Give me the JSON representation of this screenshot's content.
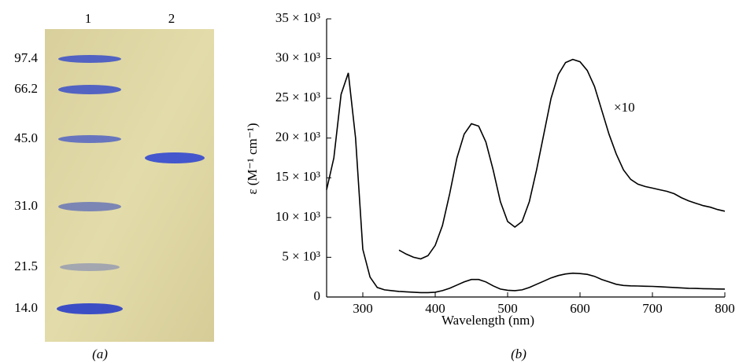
{
  "gel": {
    "lanes": [
      "1",
      "2"
    ],
    "markers": [
      "97.4",
      "66.2",
      "45.0",
      "31.0",
      "21.5",
      "14.0"
    ],
    "caption": "(a)"
  },
  "chart_data": {
    "type": "line",
    "caption": "(b)",
    "x_label": "Wavelength (nm)",
    "y_label": "ε (M⁻¹ cm⁻¹)",
    "annotation": "×10",
    "x": [
      250,
      260,
      270,
      280,
      290,
      300,
      310,
      320,
      330,
      340,
      350,
      360,
      370,
      380,
      390,
      400,
      410,
      420,
      430,
      440,
      450,
      460,
      470,
      480,
      490,
      500,
      510,
      520,
      530,
      540,
      550,
      560,
      570,
      580,
      590,
      600,
      610,
      620,
      630,
      640,
      650,
      660,
      670,
      680,
      690,
      700,
      710,
      720,
      730,
      740,
      750,
      760,
      770,
      780,
      790,
      800
    ],
    "series": [
      {
        "color": "#000000",
        "values": [
          13500,
          17500,
          25500,
          28200,
          20000,
          6000,
          2500,
          1200,
          900,
          800,
          700,
          650,
          600,
          550,
          550,
          600,
          800,
          1100,
          1500,
          1900,
          2200,
          2200,
          1900,
          1400,
          1000,
          850,
          800,
          900,
          1200,
          1600,
          2000,
          2400,
          2700,
          2900,
          3000,
          2950,
          2850,
          2600,
          2200,
          1900,
          1600,
          1450,
          1400,
          1380,
          1350,
          1330,
          1300,
          1250,
          1200,
          1150,
          1100,
          1080,
          1050,
          1030,
          1010,
          1000
        ]
      },
      {
        "color": "#000000",
        "values": [
          null,
          null,
          null,
          null,
          null,
          null,
          null,
          null,
          null,
          null,
          5900,
          5400,
          5000,
          4800,
          5200,
          6500,
          9000,
          13000,
          17500,
          20500,
          21800,
          21500,
          19500,
          16000,
          12000,
          9500,
          8800,
          9500,
          12000,
          16000,
          20500,
          25000,
          28000,
          29500,
          29900,
          29600,
          28500,
          26500,
          23500,
          20500,
          18000,
          16000,
          14800,
          14200,
          13900,
          13700,
          13500,
          13300,
          13000,
          12500,
          12100,
          11800,
          11500,
          11300,
          11000,
          10800
        ]
      }
    ],
    "xlim": [
      250,
      800
    ],
    "xticks": [
      300,
      400,
      500,
      600,
      700,
      800
    ],
    "ylim": [
      0,
      35000
    ],
    "yticks": [
      0,
      {
        "value": 5000,
        "label": "5 × 10³"
      },
      {
        "value": 10000,
        "label": "10 × 10³"
      },
      {
        "value": 15000,
        "label": "15 × 10³"
      },
      {
        "value": 20000,
        "label": "20 × 10³"
      },
      {
        "value": 25000,
        "label": "25 × 10³"
      },
      {
        "value": 30000,
        "label": "30 × 10³"
      },
      {
        "value": 35000,
        "label": "35 × 10³"
      }
    ],
    "grid": false
  }
}
